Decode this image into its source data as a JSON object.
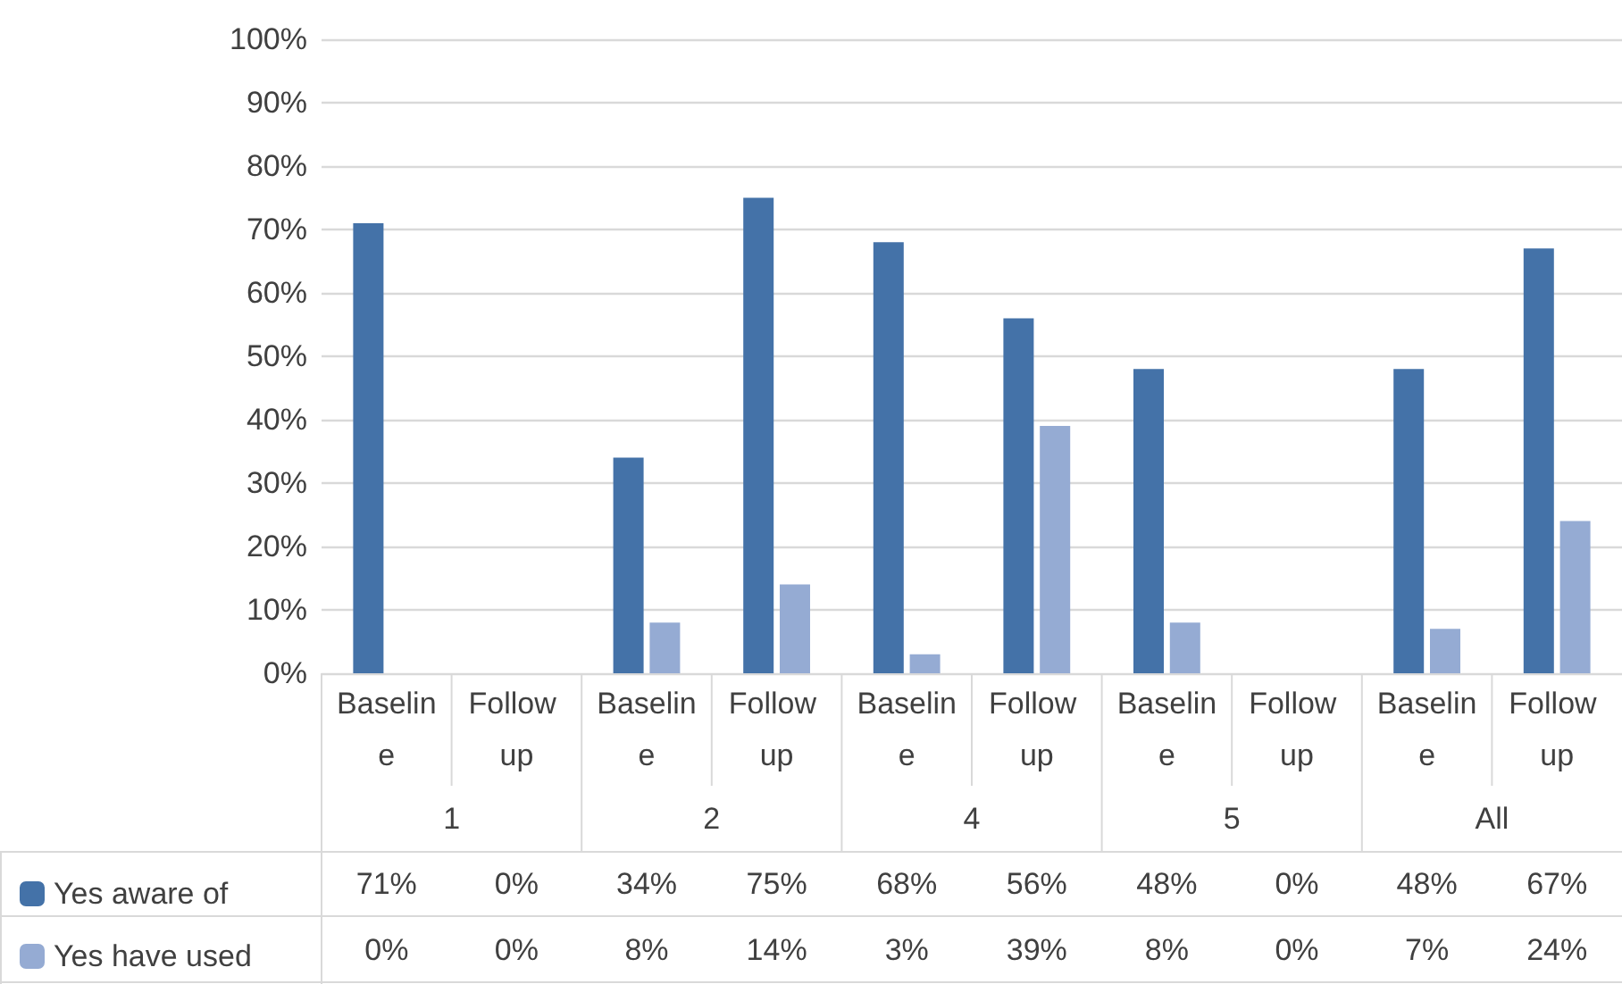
{
  "chart_data": {
    "type": "bar",
    "categories": [
      "Baseline",
      "Follow up",
      "Baseline",
      "Follow up",
      "Baseline",
      "Follow up",
      "Baseline",
      "Follow up",
      "Baseline",
      "Follow up"
    ],
    "annotations": [
      "1",
      "2",
      "4",
      "5",
      "All"
    ],
    "series": [
      {
        "name": "Yes aware of",
        "color": "#4472a8",
        "values": [
          71,
          0,
          34,
          75,
          68,
          56,
          48,
          0,
          48,
          67
        ],
        "value_labels": [
          "71%",
          "0%",
          "34%",
          "75%",
          "68%",
          "56%",
          "48%",
          "0%",
          "48%",
          "67%"
        ]
      },
      {
        "name": "Yes have used",
        "color": "#95abd3",
        "values": [
          0,
          0,
          8,
          14,
          3,
          39,
          8,
          0,
          7,
          24
        ],
        "value_labels": [
          "0%",
          "0%",
          "8%",
          "14%",
          "3%",
          "39%",
          "8%",
          "0%",
          "7%",
          "24%"
        ]
      }
    ],
    "ylim": [
      0,
      100
    ],
    "yticks": [
      {
        "value": 0,
        "label": "0%"
      },
      {
        "value": 10,
        "label": "10%"
      },
      {
        "value": 20,
        "label": "20%"
      },
      {
        "value": 30,
        "label": "30%"
      },
      {
        "value": 40,
        "label": "40%"
      },
      {
        "value": 50,
        "label": "50%"
      },
      {
        "value": 60,
        "label": "60%"
      },
      {
        "value": 70,
        "label": "70%"
      },
      {
        "value": 80,
        "label": "80%"
      },
      {
        "value": 90,
        "label": "90%"
      },
      {
        "value": 100,
        "label": "100%"
      }
    ],
    "grid": "y",
    "legend": "bottom left"
  }
}
